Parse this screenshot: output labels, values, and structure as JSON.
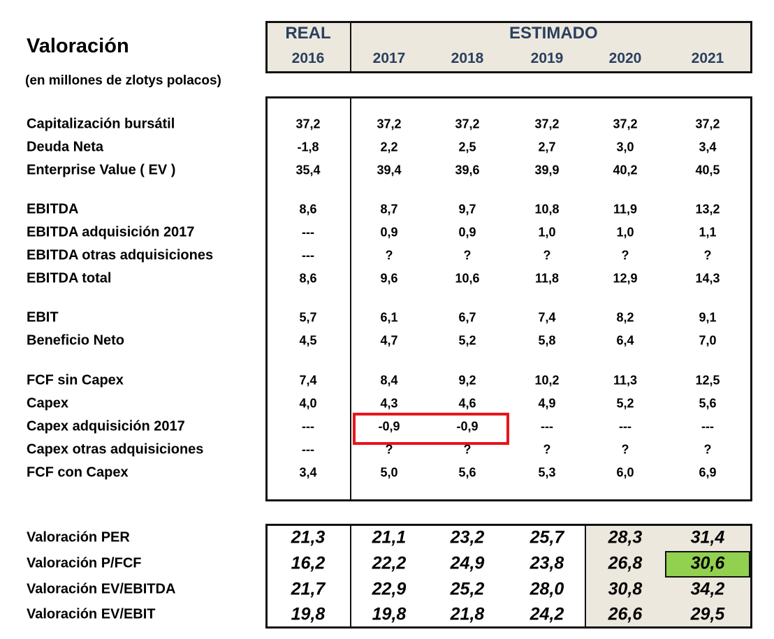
{
  "title": "Valoración",
  "subtitle": "(en millones de zlotys polacos)",
  "header": {
    "real": "REAL",
    "estimado": "ESTIMADO",
    "years": [
      "2016",
      "2017",
      "2018",
      "2019",
      "2020",
      "2021"
    ]
  },
  "rows": [
    {
      "label": "Capitalización bursátil",
      "values": [
        "37,2",
        "37,2",
        "37,2",
        "37,2",
        "37,2",
        "37,2"
      ]
    },
    {
      "label": "Deuda Neta",
      "values": [
        "-1,8",
        "2,2",
        "2,5",
        "2,7",
        "3,0",
        "3,4"
      ]
    },
    {
      "label": "Enterprise Value ( EV )",
      "values": [
        "35,4",
        "39,4",
        "39,6",
        "39,9",
        "40,2",
        "40,5"
      ]
    },
    {
      "label": "EBITDA",
      "values": [
        "8,6",
        "8,7",
        "9,7",
        "10,8",
        "11,9",
        "13,2"
      ]
    },
    {
      "label": "EBITDA adquisición 2017",
      "values": [
        "---",
        "0,9",
        "0,9",
        "1,0",
        "1,0",
        "1,1"
      ]
    },
    {
      "label": "EBITDA otras adquisiciones",
      "values": [
        "---",
        "?",
        "?",
        "?",
        "?",
        "?"
      ]
    },
    {
      "label": "EBITDA total",
      "values": [
        "8,6",
        "9,6",
        "10,6",
        "11,8",
        "12,9",
        "14,3"
      ]
    },
    {
      "label": "EBIT",
      "values": [
        "5,7",
        "6,1",
        "6,7",
        "7,4",
        "8,2",
        "9,1"
      ]
    },
    {
      "label": "Beneficio Neto",
      "values": [
        "4,5",
        "4,7",
        "5,2",
        "5,8",
        "6,4",
        "7,0"
      ]
    },
    {
      "label": "FCF sin Capex",
      "values": [
        "7,4",
        "8,4",
        "9,2",
        "10,2",
        "11,3",
        "12,5"
      ]
    },
    {
      "label": "Capex",
      "values": [
        "4,0",
        "4,3",
        "4,6",
        "4,9",
        "5,2",
        "5,6"
      ]
    },
    {
      "label": "Capex adquisición 2017",
      "values": [
        "---",
        "-0,9",
        "-0,9",
        "---",
        "---",
        "---"
      ]
    },
    {
      "label": "Capex otras adquisiciones",
      "values": [
        "---",
        "?",
        "?",
        "?",
        "?",
        "?"
      ]
    },
    {
      "label": "FCF con Capex",
      "values": [
        "3,4",
        "5,0",
        "5,6",
        "5,3",
        "6,0",
        "6,9"
      ]
    }
  ],
  "valuations": [
    {
      "label": "Valoración PER",
      "values": [
        "21,3",
        "21,1",
        "23,2",
        "25,7",
        "28,3",
        "31,4"
      ]
    },
    {
      "label": "Valoración P/FCF",
      "values": [
        "16,2",
        "22,2",
        "24,9",
        "23,8",
        "26,8",
        "30,6"
      ]
    },
    {
      "label": "Valoración EV/EBITDA",
      "values": [
        "21,7",
        "22,9",
        "25,2",
        "28,0",
        "30,8",
        "34,2"
      ]
    },
    {
      "label": "Valoración EV/EBIT",
      "values": [
        "19,8",
        "19,8",
        "21,8",
        "24,2",
        "26,6",
        "29,5"
      ]
    }
  ],
  "colors": {
    "header_text": "#2b3f5e",
    "header_bg": "#ece8de",
    "highlight_green": "#92d050",
    "highlight_red": "#e8141c"
  }
}
